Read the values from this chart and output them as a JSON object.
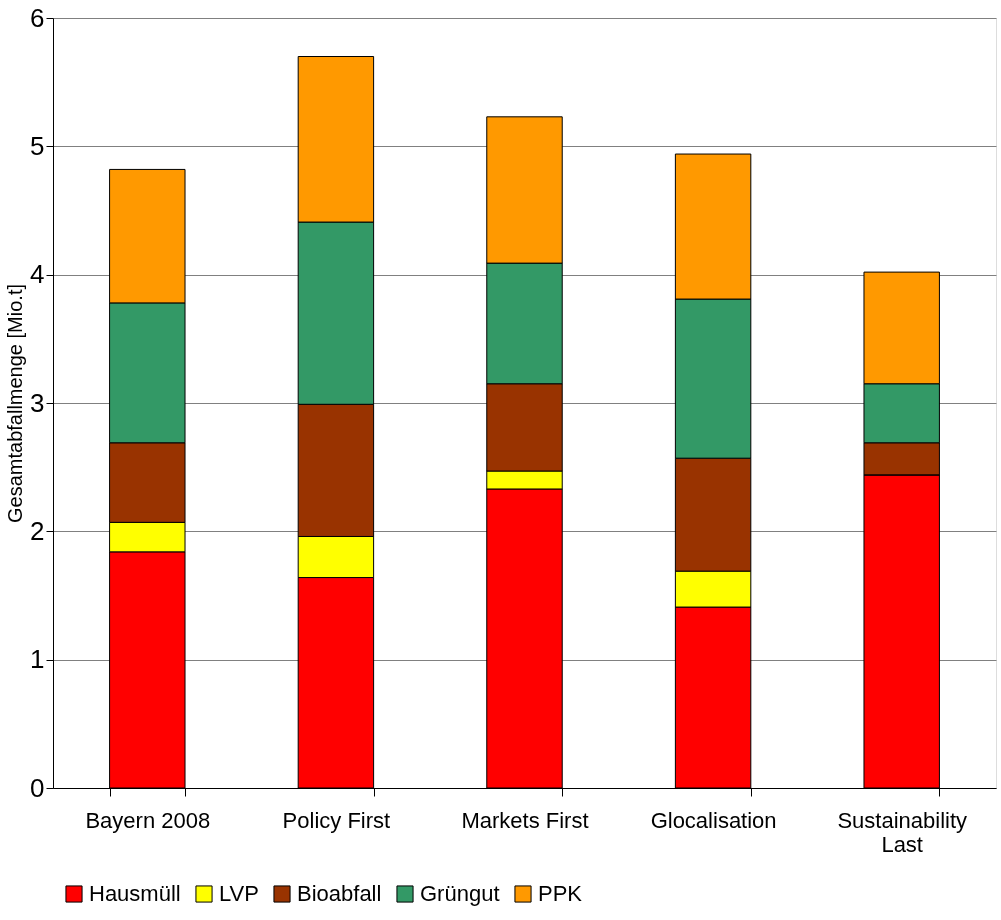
{
  "chart_data": {
    "type": "bar",
    "stacked": true,
    "ylabel": "Gesamtabfallmenge [Mio.t]",
    "categories": [
      "Bayern 2008",
      "Policy First",
      "Markets First",
      "Glocalisation",
      "Sustainability Last"
    ],
    "series": [
      {
        "name": "Hausmüll",
        "color": "#ff0000",
        "values": [
          1.84,
          1.64,
          2.33,
          1.41,
          2.44
        ]
      },
      {
        "name": "LVP",
        "color": "#ffff00",
        "values": [
          0.23,
          0.32,
          0.14,
          0.28,
          0
        ]
      },
      {
        "name": "Bioabfall",
        "color": "#993300",
        "values": [
          0.62,
          1.03,
          0.68,
          0.88,
          0.25
        ]
      },
      {
        "name": "Grüngut",
        "color": "#339966",
        "values": [
          1.09,
          1.42,
          0.94,
          1.24,
          0.46
        ]
      },
      {
        "name": "PPK",
        "color": "#ff9900",
        "values": [
          1.04,
          1.29,
          1.14,
          1.13,
          0.87
        ]
      }
    ],
    "ylim": [
      0,
      6
    ],
    "yticks": [
      0,
      1,
      2,
      3,
      4,
      5,
      6
    ],
    "grid": "y",
    "legend": "bottom"
  }
}
